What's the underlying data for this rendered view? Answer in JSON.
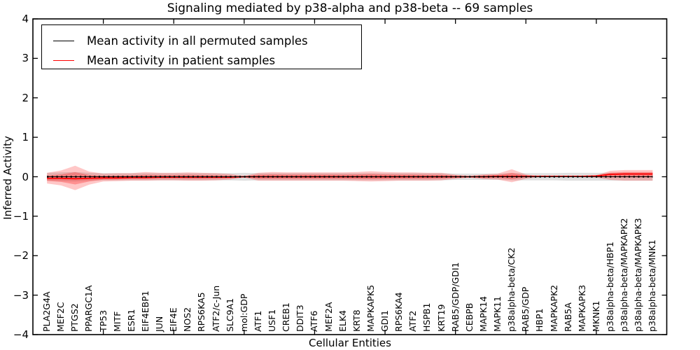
{
  "title": "Signaling mediated by p38-alpha and p38-beta -- 69 samples",
  "axes": {
    "xlabel": "Cellular Entities",
    "ylabel": "Inferred Activity",
    "y_tick_labels": [
      "4",
      "3",
      "2",
      "1",
      "0",
      "−1",
      "−2",
      "−3",
      "−4"
    ],
    "y_tick_values": [
      4,
      3,
      2,
      1,
      0,
      -1,
      -2,
      -3,
      -4
    ],
    "x_tick_positions": [
      5,
      10,
      15,
      20,
      25,
      30,
      35,
      40
    ]
  },
  "legend": {
    "items": [
      {
        "label": "Mean activity in all permuted samples",
        "color": "#000000"
      },
      {
        "label": "Mean activity in patient samples",
        "color": "#ff0000"
      }
    ]
  },
  "colors": {
    "patient_line": "#ff0000",
    "permuted_line": "#000000",
    "patient_band": "#ff0000",
    "permuted_band": "#888888",
    "frame": "#000000"
  },
  "chart_data": {
    "type": "line",
    "title": "Signaling mediated by p38-alpha and p38-beta -- 69 samples",
    "xlabel": "Cellular Entities",
    "ylabel": "Inferred Activity",
    "ylim": [
      -4,
      4
    ],
    "xlim": [
      0,
      45
    ],
    "grid": false,
    "legend_position": "upper left",
    "categories": [
      "PLA2G4A",
      "MEF2C",
      "PTGS2",
      "PPARGC1A",
      "TP53",
      "MITF",
      "ESR1",
      "EIF4EBP1",
      "JUN",
      "EIF4E",
      "NOS2",
      "RPS6KA5",
      "ATF2/c-Jun",
      "SLC9A1",
      "mol:GDP",
      "ATF1",
      "USF1",
      "CREB1",
      "DDIT3",
      "ATF6",
      "MEF2A",
      "ELK4",
      "KRT8",
      "MAPKAPK5",
      "GDI1",
      "RPS6KA4",
      "ATF2",
      "HSPB1",
      "KRT19",
      "RAB5/GDP/GDI1",
      "CEBPB",
      "MAPK14",
      "MAPK11",
      "p38alpha-beta/CK2",
      "RAB5/GDP",
      "HBP1",
      "MAPKAPK2",
      "RAB5A",
      "MAPKAPK3",
      "MKNK1",
      "p38alpha-beta/HBP1",
      "p38alpha-beta/MAPKAPK2",
      "p38alpha-beta/MAPKAPK3",
      "p38alpha-beta/MNK1"
    ],
    "series": [
      {
        "name": "Mean activity in all permuted samples",
        "color": "#000000",
        "values": [
          0,
          0,
          0,
          0,
          0,
          0,
          0,
          0,
          0,
          0,
          0,
          0,
          0,
          0,
          0,
          0,
          0,
          0,
          0,
          0,
          0,
          0,
          0,
          0,
          0,
          0,
          0,
          0,
          0,
          0,
          0,
          0,
          0,
          0,
          0,
          0,
          0,
          0,
          0,
          0,
          0,
          0,
          0,
          0
        ]
      },
      {
        "name": "Mean activity in patient samples",
        "color": "#ff0000",
        "values": [
          -0.04,
          -0.04,
          -0.05,
          -0.04,
          -0.03,
          -0.03,
          -0.02,
          -0.02,
          -0.01,
          -0.01,
          -0.01,
          -0.01,
          -0.01,
          -0.01,
          0,
          0,
          0,
          0,
          0,
          0,
          0,
          0,
          0,
          0,
          0,
          0,
          0,
          0,
          0,
          0,
          0,
          0,
          0.01,
          0.01,
          0.01,
          0.01,
          0.01,
          0.01,
          0.01,
          0.02,
          0.06,
          0.07,
          0.07,
          0.07
        ]
      }
    ],
    "bands": [
      {
        "name": "permuted-activity-range",
        "color": "#888888",
        "opacity": 0.27,
        "upper": [
          0.1,
          0.11,
          0.12,
          0.1,
          0.09,
          0.09,
          0.09,
          0.09,
          0.09,
          0.09,
          0.09,
          0.09,
          0.09,
          0.09,
          0.1,
          0.09,
          0.09,
          0.09,
          0.09,
          0.09,
          0.09,
          0.09,
          0.09,
          0.09,
          0.09,
          0.09,
          0.09,
          0.09,
          0.09,
          0.08,
          0.08,
          0.08,
          0.08,
          0.09,
          0.09,
          0.09,
          0.09,
          0.1,
          0.1,
          0.1,
          0.1,
          0.1,
          0.1,
          0.1
        ],
        "lower": [
          -0.1,
          -0.11,
          -0.12,
          -0.1,
          -0.09,
          -0.09,
          -0.09,
          -0.09,
          -0.09,
          -0.09,
          -0.09,
          -0.09,
          -0.09,
          -0.09,
          -0.1,
          -0.09,
          -0.09,
          -0.09,
          -0.09,
          -0.09,
          -0.09,
          -0.09,
          -0.09,
          -0.09,
          -0.09,
          -0.09,
          -0.09,
          -0.09,
          -0.09,
          -0.08,
          -0.08,
          -0.08,
          -0.08,
          -0.09,
          -0.09,
          -0.09,
          -0.09,
          -0.1,
          -0.1,
          -0.1,
          -0.1,
          -0.1,
          -0.1,
          -0.1
        ]
      },
      {
        "name": "patient-activity-range",
        "color": "#ff0000",
        "opacity": 0.22,
        "upper": [
          0.1,
          0.16,
          0.28,
          0.13,
          0.08,
          0.09,
          0.09,
          0.12,
          0.1,
          0.1,
          0.11,
          0.1,
          0.09,
          0.07,
          0.02,
          0.1,
          0.12,
          0.11,
          0.11,
          0.11,
          0.11,
          0.11,
          0.12,
          0.14,
          0.12,
          0.11,
          0.11,
          0.1,
          0.1,
          0.05,
          0.02,
          0.06,
          0.08,
          0.19,
          0.06,
          0.01,
          0.01,
          0.01,
          0.01,
          0.04,
          0.15,
          0.17,
          0.17,
          0.17
        ],
        "lower": [
          -0.17,
          -0.22,
          -0.34,
          -0.2,
          -0.12,
          -0.11,
          -0.1,
          -0.1,
          -0.09,
          -0.09,
          -0.1,
          -0.1,
          -0.09,
          -0.07,
          -0.02,
          -0.1,
          -0.1,
          -0.1,
          -0.1,
          -0.1,
          -0.1,
          -0.1,
          -0.11,
          -0.12,
          -0.11,
          -0.1,
          -0.1,
          -0.1,
          -0.09,
          -0.05,
          -0.02,
          -0.06,
          -0.07,
          -0.14,
          -0.05,
          -0.01,
          -0.01,
          -0.01,
          -0.01,
          -0.02,
          -0.08,
          -0.1,
          -0.1,
          -0.1
        ]
      }
    ]
  }
}
